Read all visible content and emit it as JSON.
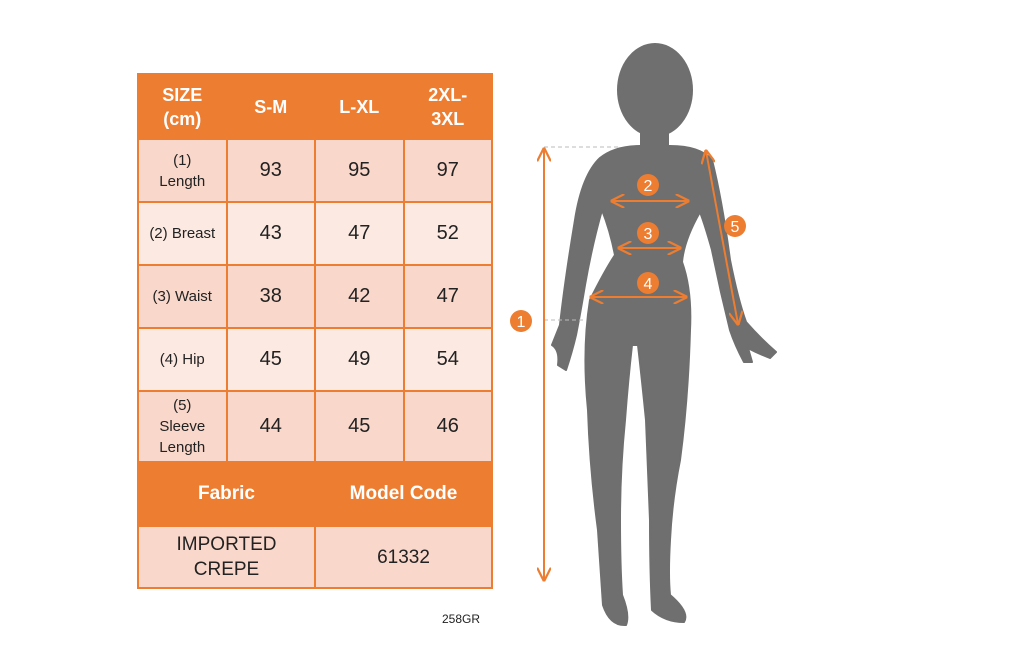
{
  "table": {
    "header": [
      "SIZE\n(cm)",
      "S-M",
      "L-XL",
      "2XL-\n3XL"
    ],
    "rows": [
      {
        "label": "(1)\nLength",
        "values": [
          "93",
          "95",
          "97"
        ]
      },
      {
        "label": "(2) Breast",
        "values": [
          "43",
          "47",
          "52"
        ]
      },
      {
        "label": "(3) Waist",
        "values": [
          "38",
          "42",
          "47"
        ]
      },
      {
        "label": "(4) Hip",
        "values": [
          "45",
          "49",
          "54"
        ]
      },
      {
        "label": "(5)\nSleeve\nLength",
        "values": [
          "44",
          "45",
          "46"
        ]
      }
    ],
    "fabric_label": "Fabric",
    "model_code_label": "Model Code",
    "fabric_value": "IMPORTED\nCREPE",
    "model_code_value": "61332"
  },
  "product_code": "258GR",
  "figure": {
    "markers": [
      "1",
      "2",
      "3",
      "4",
      "5"
    ]
  },
  "colors": {
    "accent": "#ED7D31",
    "cell_dark": "#F9D7CA",
    "cell_light": "#FCE9E2",
    "silhouette": "#6F6F6F"
  }
}
